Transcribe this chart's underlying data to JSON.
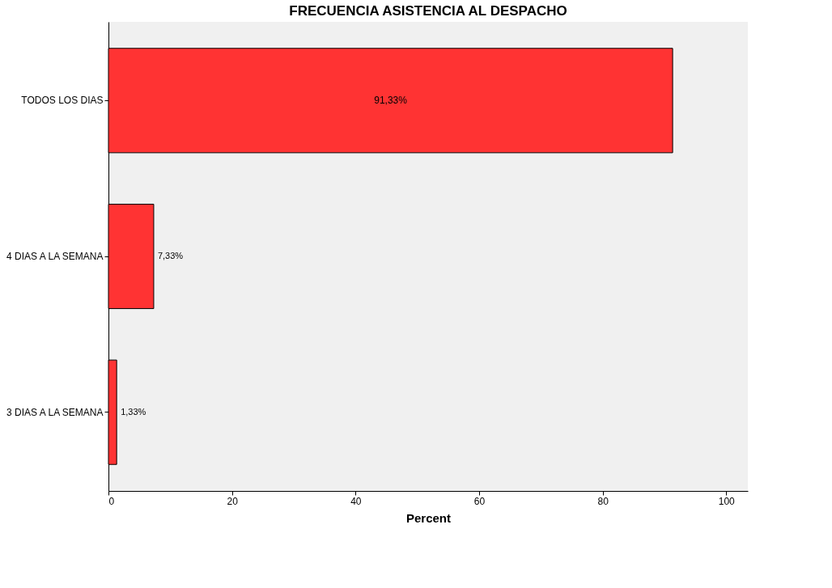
{
  "chart_data": {
    "type": "bar",
    "orientation": "horizontal",
    "title": "FRECUENCIA ASISTENCIA AL DESPACHO",
    "xlabel": "Percent",
    "categories": [
      "TODOS LOS DIAS",
      "4 DIAS A LA SEMANA",
      "3 DIAS A LA SEMANA"
    ],
    "values": [
      91.33,
      7.33,
      1.33
    ],
    "value_labels": [
      "91,33%",
      "7,33%",
      "1,33%"
    ],
    "color": "#ff3333",
    "xlim": [
      0,
      103.5
    ],
    "xticks": [
      0,
      20,
      40,
      60,
      80,
      100
    ],
    "grid": false
  }
}
